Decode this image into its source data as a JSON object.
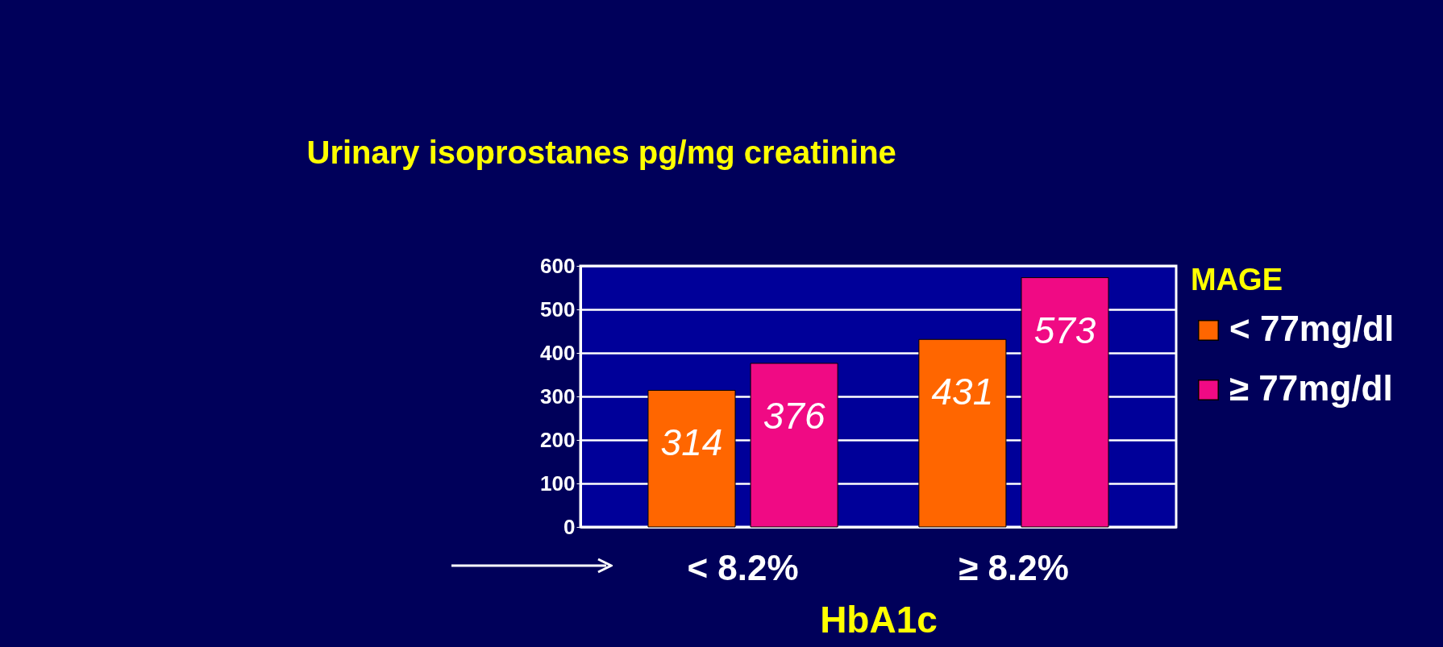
{
  "chart_data": {
    "type": "bar",
    "ylabel": "Urinary isoprostanes pg/mg creatinine",
    "xlabel": "HbA1c",
    "legend_title": "MAGE",
    "categories": [
      "< 8.2%",
      "≥ 8.2%"
    ],
    "series": [
      {
        "name": "< 77mg/dl",
        "color": "#ff6600",
        "values": [
          314,
          431
        ]
      },
      {
        "name": "≥ 77mg/dl",
        "color": "#f00a84",
        "values": [
          376,
          573
        ]
      }
    ],
    "ylim": [
      0,
      600
    ],
    "yticks": [
      0,
      100,
      200,
      300,
      400,
      500,
      600
    ],
    "grid": "y",
    "legend": "right",
    "data_labels": true
  }
}
